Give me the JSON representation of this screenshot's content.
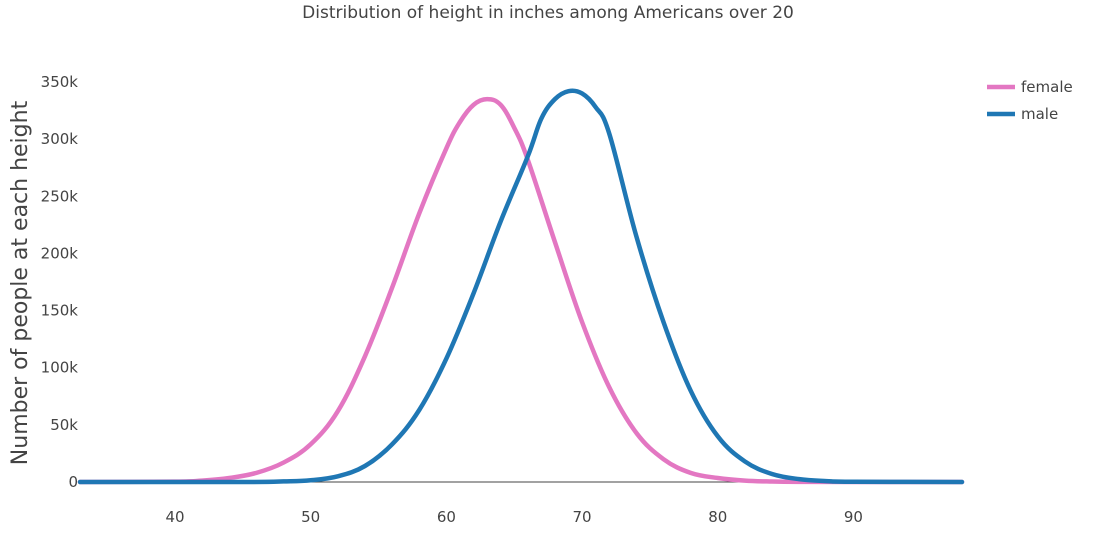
{
  "chart_data": {
    "type": "line",
    "title": "Distribution of height in inches among Americans over 20",
    "xlabel": "",
    "ylabel": "Number of people at each height",
    "xlim": [
      33,
      98
    ],
    "ylim": [
      0,
      350000
    ],
    "x_ticks": [
      40,
      50,
      60,
      70,
      80,
      90
    ],
    "y_ticks": [
      0,
      50000,
      100000,
      150000,
      200000,
      250000,
      300000,
      350000
    ],
    "y_tick_labels": [
      "0",
      "50k",
      "100k",
      "150k",
      "200k",
      "250k",
      "300k",
      "350k"
    ],
    "grid": false,
    "zero_line": true,
    "legend_position": "top-right",
    "series": [
      {
        "name": "female",
        "color": "#e377c2",
        "x": [
          33,
          40,
          42,
          44,
          46,
          48,
          50,
          52,
          54,
          56,
          58,
          60,
          61,
          62,
          63,
          64,
          65,
          66,
          68,
          70,
          72,
          74,
          76,
          78,
          80,
          82,
          84,
          86,
          90,
          98
        ],
        "y": [
          0,
          300,
          1200,
          3500,
          8000,
          17000,
          33000,
          62000,
          110000,
          170000,
          235000,
          292000,
          315000,
          330000,
          335000,
          330000,
          310000,
          282000,
          210000,
          140000,
          83000,
          43000,
          20000,
          8000,
          3500,
          1200,
          400,
          100,
          0,
          0
        ]
      },
      {
        "name": "male",
        "color": "#1f77b4",
        "x": [
          33,
          45,
          48,
          50,
          52,
          54,
          56,
          58,
          60,
          62,
          64,
          66,
          67,
          68,
          69,
          70,
          71,
          72,
          74,
          76,
          78,
          80,
          82,
          84,
          86,
          88,
          90,
          98
        ],
        "y": [
          0,
          0,
          500,
          1500,
          5000,
          14000,
          33000,
          63000,
          108000,
          165000,
          228000,
          285000,
          318000,
          335000,
          342000,
          340000,
          328000,
          305000,
          215000,
          140000,
          80000,
          40000,
          18000,
          7000,
          2500,
          800,
          200,
          0
        ]
      }
    ]
  }
}
